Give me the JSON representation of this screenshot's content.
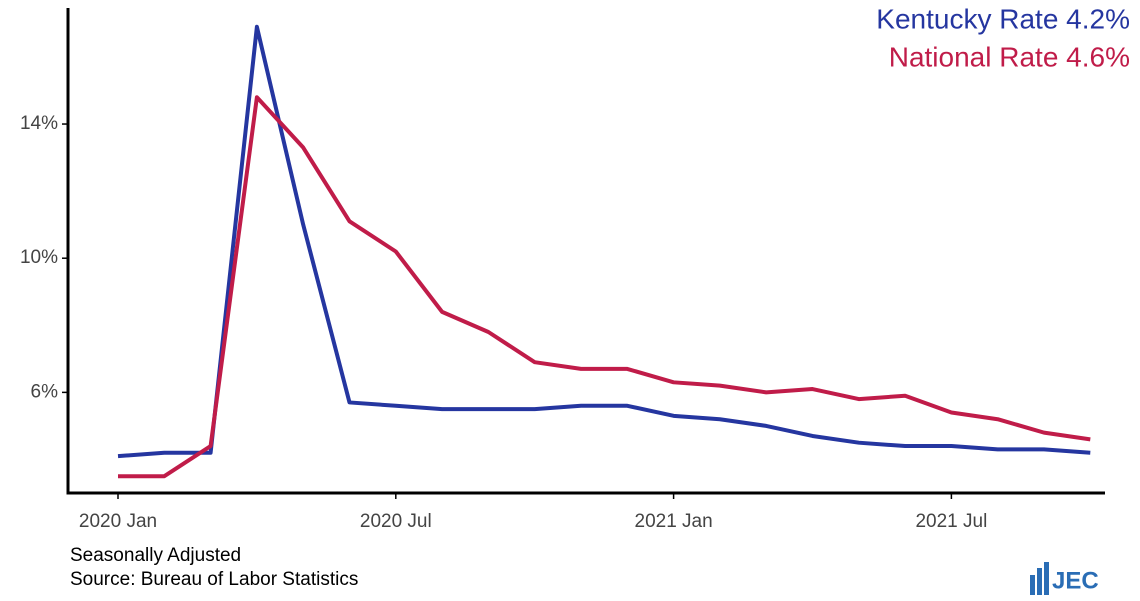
{
  "chart_data": {
    "type": "line",
    "categories": [
      "2020 Jan",
      null,
      null,
      null,
      null,
      null,
      "2020 Jul",
      null,
      null,
      null,
      null,
      null,
      "2021 Jan",
      null,
      null,
      null,
      null,
      null,
      "2021 Jul",
      null,
      null,
      null
    ],
    "series": [
      {
        "name": "Kentucky Rate 4.2%",
        "color": "#2536a0",
        "values": [
          4.1,
          4.2,
          4.2,
          16.9,
          11.0,
          5.7,
          5.6,
          5.5,
          5.5,
          5.5,
          5.6,
          5.6,
          5.3,
          5.2,
          5.0,
          4.7,
          4.5,
          4.4,
          4.4,
          4.3,
          4.3,
          4.2
        ]
      },
      {
        "name": "National Rate 4.6%",
        "color": "#c01c49",
        "values": [
          3.5,
          3.5,
          4.4,
          14.8,
          13.3,
          11.1,
          10.2,
          8.4,
          7.8,
          6.9,
          6.7,
          6.7,
          6.3,
          6.2,
          6.0,
          6.1,
          5.8,
          5.9,
          5.4,
          5.2,
          4.8,
          4.6
        ]
      }
    ],
    "ylim": [
      3,
      17.4
    ],
    "yticks": [
      {
        "value": 6,
        "label": "6%"
      },
      {
        "value": 10,
        "label": "10%"
      },
      {
        "value": 14,
        "label": "14%"
      }
    ],
    "grid": false,
    "legend": "top-right",
    "notes": [
      "Seasonally Adjusted",
      "Source: Bureau of Labor Statistics"
    ],
    "logo": "JEC"
  }
}
